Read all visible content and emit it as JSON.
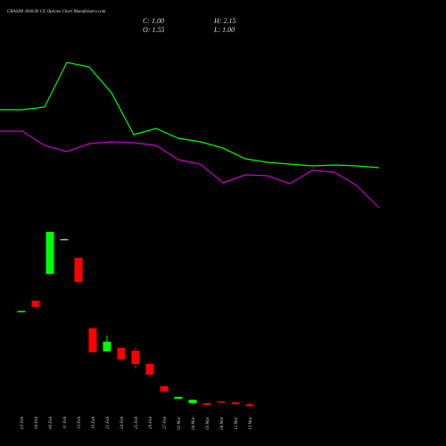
{
  "chart_data": [
    {
      "type": "candlestick",
      "title": "GRASIM 3040.00 CE Options Chart MunafaSutra.com",
      "ohlc_labels": [
        "C: 1.00",
        "H: 2.15",
        "O: 1.55",
        "L: 1.00"
      ],
      "categories": [
        "03 Feb",
        "04 Feb",
        "06 Feb",
        "11 Feb",
        "13 Feb",
        "19 Feb",
        "21 Feb",
        "24 Feb",
        "25 Feb",
        "26 Feb",
        "27 Feb",
        "02 Mar",
        "04 Mar",
        "05 Mar",
        "06 Mar",
        "12 Mar",
        "13 Mar"
      ],
      "open": [
        30.2,
        33.7,
        42,
        52.8,
        47,
        25.1,
        18,
        19.1,
        18.2,
        14.1,
        7.2,
        3.3,
        1.9,
        1.9,
        2.5,
        2.2,
        1.55
      ],
      "high": [
        30.6,
        33.7,
        55,
        53,
        47,
        25.1,
        22.9,
        19.1,
        19.1,
        14.1,
        7.2,
        3.9,
        3.0,
        1.9,
        2.5,
        2.2,
        2.15
      ],
      "low": [
        30.1,
        31.8,
        42,
        52.7,
        39.5,
        17.7,
        18,
        15.5,
        12.7,
        10.8,
        5.5,
        3.3,
        1.9,
        1.4,
        2.2,
        1.7,
        1.0
      ],
      "close": [
        30.5,
        31.8,
        55,
        52.8,
        39.5,
        17.7,
        21,
        15.5,
        14.1,
        10.8,
        5.5,
        3.9,
        3.0,
        1.4,
        2.2,
        1.7,
        1.0
      ],
      "up_color": "#00ff00",
      "down_color": "#ff0000",
      "flat_color": "#aaaaaa",
      "ylim": [
        0,
        55
      ]
    },
    {
      "type": "line",
      "series": [
        {
          "color": "#00ff00",
          "values": [
            137,
            137,
            140,
            190,
            185,
            156,
            109,
            116,
            105,
            101,
            94,
            82,
            78,
            76,
            74,
            75,
            74,
            72
          ]
        },
        {
          "color": "#cc00cc",
          "values": [
            113,
            113,
            97,
            90,
            99,
            101,
            100,
            97,
            81,
            76,
            55,
            64,
            63,
            54,
            69,
            67,
            52,
            27
          ]
        }
      ],
      "ylim": [
        0,
        200
      ]
    }
  ]
}
